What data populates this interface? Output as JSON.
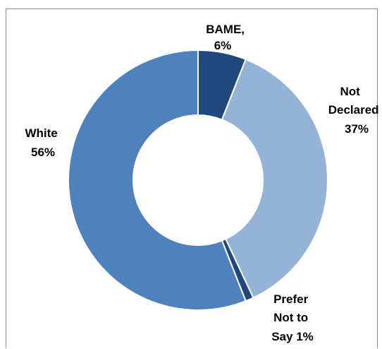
{
  "chart_data": {
    "type": "pie",
    "style": "donut",
    "title": "",
    "slices": [
      {
        "name": "BAME",
        "value": 6,
        "label_lines": [
          "BAME,",
          "6%"
        ],
        "color": "#1f497d"
      },
      {
        "name": "Not Declared",
        "value": 37,
        "label_lines": [
          "Not",
          "Declared",
          "37%"
        ],
        "color": "#95b3d7"
      },
      {
        "name": "Prefer Not to Say",
        "value": 1,
        "label_lines": [
          "Prefer",
          "Not to",
          "Say 1%"
        ],
        "color": "#1f497d"
      },
      {
        "name": "White",
        "value": 56,
        "label_lines": [
          "White",
          "56%"
        ],
        "color": "#4f81bd"
      }
    ],
    "legend": "none"
  }
}
